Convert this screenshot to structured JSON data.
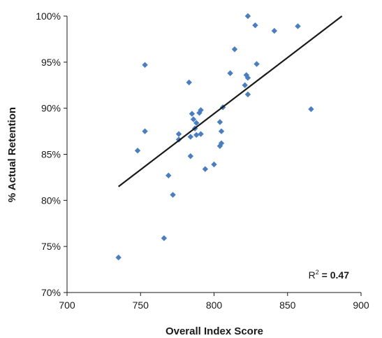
{
  "chart_data": {
    "type": "scatter",
    "xlabel": "Overall Index Score",
    "ylabel": "% Actual Retention",
    "xlim": [
      700,
      900
    ],
    "ylim": [
      70,
      100
    ],
    "x_ticks": [
      700,
      750,
      800,
      850,
      900
    ],
    "y_ticks": [
      70,
      75,
      80,
      85,
      90,
      95,
      100
    ],
    "x_tick_labels": [
      "700",
      "750",
      "800",
      "850",
      "900"
    ],
    "y_tick_labels": [
      "70%",
      "75%",
      "80%",
      "85%",
      "90%",
      "95%",
      "100%"
    ],
    "grid": false,
    "marker": "diamond",
    "marker_color": "#4a7ebf",
    "trendline_color": "#1a1a1a",
    "annotation": {
      "label": "R",
      "superscript": "2",
      "value": " = 0.47"
    },
    "trendline": {
      "x": [
        735,
        887
      ],
      "y": [
        81.5,
        100.0
      ]
    },
    "points": [
      {
        "x": 823,
        "y": 100.0
      },
      {
        "x": 828,
        "y": 99.0
      },
      {
        "x": 857,
        "y": 98.9
      },
      {
        "x": 841,
        "y": 98.4
      },
      {
        "x": 814,
        "y": 96.4
      },
      {
        "x": 753,
        "y": 94.7
      },
      {
        "x": 829,
        "y": 94.8
      },
      {
        "x": 811,
        "y": 93.8
      },
      {
        "x": 822,
        "y": 93.6
      },
      {
        "x": 823,
        "y": 93.3
      },
      {
        "x": 783,
        "y": 92.8
      },
      {
        "x": 821,
        "y": 92.5
      },
      {
        "x": 823,
        "y": 91.5
      },
      {
        "x": 806,
        "y": 90.1
      },
      {
        "x": 866,
        "y": 89.9
      },
      {
        "x": 791,
        "y": 89.8
      },
      {
        "x": 790,
        "y": 89.5
      },
      {
        "x": 785,
        "y": 89.4
      },
      {
        "x": 786,
        "y": 88.8
      },
      {
        "x": 788,
        "y": 88.4
      },
      {
        "x": 804,
        "y": 88.5
      },
      {
        "x": 787,
        "y": 87.8
      },
      {
        "x": 753,
        "y": 87.5
      },
      {
        "x": 805,
        "y": 87.5
      },
      {
        "x": 776,
        "y": 87.2
      },
      {
        "x": 788,
        "y": 87.1
      },
      {
        "x": 791,
        "y": 87.2
      },
      {
        "x": 784,
        "y": 86.9
      },
      {
        "x": 776,
        "y": 86.6
      },
      {
        "x": 805,
        "y": 86.2
      },
      {
        "x": 804,
        "y": 85.9
      },
      {
        "x": 748,
        "y": 85.4
      },
      {
        "x": 784,
        "y": 84.8
      },
      {
        "x": 800,
        "y": 83.9
      },
      {
        "x": 794,
        "y": 83.4
      },
      {
        "x": 769,
        "y": 82.7
      },
      {
        "x": 772,
        "y": 80.6
      },
      {
        "x": 766,
        "y": 75.9
      },
      {
        "x": 735,
        "y": 73.8
      }
    ]
  }
}
